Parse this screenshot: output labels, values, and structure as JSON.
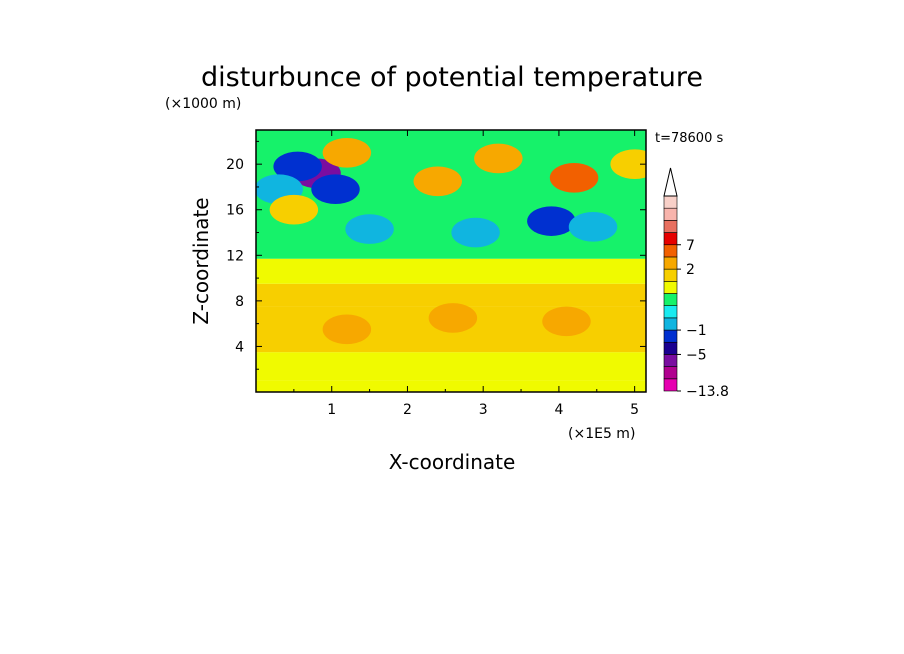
{
  "chart_data": {
    "type": "heatmap",
    "title": "disturbunce of potential temperature",
    "time_label": "t=78600 s",
    "xlabel": "X-coordinate",
    "ylabel": "Z-coordinate",
    "x_unit": "(×1E5 m)",
    "y_unit": "(×1000 m)",
    "xlim": [
      0,
      5.15
    ],
    "ylim": [
      0,
      23
    ],
    "x_ticks": [
      "1",
      "2",
      "3",
      "4",
      "5"
    ],
    "y_ticks": [
      "4",
      "8",
      "12",
      "16",
      "20"
    ],
    "colorbar": {
      "labels": [
        "7",
        "2",
        "−1",
        "−5",
        "−13.8"
      ],
      "min": -13.8,
      "levels": [
        {
          "value": -13.8,
          "color": "#e600b0"
        },
        {
          "value": -9,
          "color": "#b0008f"
        },
        {
          "value": -7,
          "color": "#7a0da0"
        },
        {
          "value": -5,
          "color": "#1a0090"
        },
        {
          "value": -3,
          "color": "#0030d0"
        },
        {
          "value": -1,
          "color": "#10b5e0"
        },
        {
          "value": 0,
          "color": "#19ebf0"
        },
        {
          "value": 0.5,
          "color": "#16f26a"
        },
        {
          "value": 1,
          "color": "#f0fa00"
        },
        {
          "value": 1.5,
          "color": "#f7cf00"
        },
        {
          "value": 2,
          "color": "#f7a800"
        },
        {
          "value": 4,
          "color": "#f26000"
        },
        {
          "value": 7,
          "color": "#e60000"
        },
        {
          "value": 9,
          "color": "#e87060"
        },
        {
          "value": 11,
          "color": "#f8b4ac"
        },
        {
          "value": 13,
          "color": "#f8d0c8"
        }
      ]
    },
    "field_description": {
      "bands": [
        {
          "z": [
            0,
            1.0
          ],
          "value": 1.2
        },
        {
          "z": [
            1.0,
            3.5
          ],
          "value": 1.2
        },
        {
          "z": [
            3.5,
            7.5
          ],
          "value": 1.8
        },
        {
          "z": [
            7.5,
            9.5
          ],
          "value": 1.6
        },
        {
          "z": [
            9.5,
            11.7
          ],
          "value": 1.3
        },
        {
          "z": [
            11.7,
            23
          ],
          "value": 0.6
        }
      ],
      "features": [
        {
          "x": 0.8,
          "z": 19.2,
          "value": -7
        },
        {
          "x": 0.55,
          "z": 19.8,
          "value": -3
        },
        {
          "x": 1.05,
          "z": 17.8,
          "value": -3
        },
        {
          "x": 0.3,
          "z": 17.8,
          "value": -1
        },
        {
          "x": 1.5,
          "z": 14.3,
          "value": -1
        },
        {
          "x": 2.9,
          "z": 14.0,
          "value": -1
        },
        {
          "x": 3.9,
          "z": 15.0,
          "value": -3
        },
        {
          "x": 4.45,
          "z": 14.5,
          "value": -1
        },
        {
          "x": 4.2,
          "z": 18.8,
          "value": 4
        },
        {
          "x": 3.2,
          "z": 20.5,
          "value": 3
        },
        {
          "x": 2.4,
          "z": 18.5,
          "value": 2
        },
        {
          "x": 1.2,
          "z": 21.0,
          "value": 2
        },
        {
          "x": 0.5,
          "z": 16.0,
          "value": 1.5
        },
        {
          "x": 5.0,
          "z": 20.0,
          "value": 1.5
        },
        {
          "x": 4.1,
          "z": 6.2,
          "value": 2.2
        },
        {
          "x": 1.2,
          "z": 5.5,
          "value": 2.2
        },
        {
          "x": 2.6,
          "z": 6.5,
          "value": 2.1
        }
      ]
    }
  }
}
